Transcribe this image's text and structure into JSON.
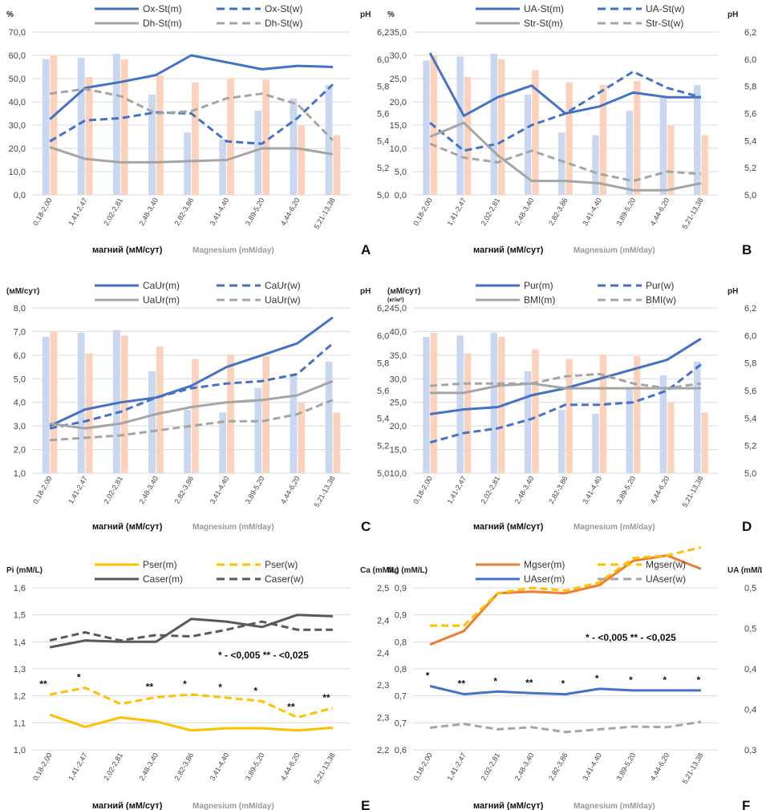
{
  "categories": [
    "0,18-2,00",
    "1,41-2,47",
    "2,02-2,81",
    "2,48-3,40",
    "2,82-3,86",
    "3,41-4,40",
    "3,89-5,20",
    "4,44-6,20",
    "5,21-13,38"
  ],
  "colors": {
    "blue": "#4472c4",
    "gray": "#a5a5a5",
    "darkgray": "#595959",
    "orange": "#ed7d31",
    "yellow": "#ffc000",
    "bar_blue": "#c9d7f0",
    "bar_orange": "#fbd3bd"
  },
  "chart_data": [
    {
      "id": "A",
      "panel_label": "A",
      "type": "line",
      "left_unit": "%",
      "right_unit": "pH",
      "xlabel": "магний (мМ/сут)",
      "xlabel_en": "Magnesium (mM/day)",
      "ylim": [
        0,
        70
      ],
      "yticks": [
        "0,0",
        "10,0",
        "20,0",
        "30,0",
        "40,0",
        "50,0",
        "60,0",
        "70,0"
      ],
      "y2lim": [
        5.0,
        6.2
      ],
      "y2ticks": [
        "5,0",
        "5,2",
        "5,4",
        "5,6",
        "5,8",
        "6,0",
        "6,2"
      ],
      "bars": {
        "men": [
          6.0,
          6.01,
          6.04,
          5.74,
          5.46,
          5.41,
          5.62,
          5.71,
          5.81
        ],
        "women": [
          6.03,
          5.87,
          6.0,
          5.88,
          5.83,
          5.86,
          5.85,
          5.51,
          5.44
        ]
      },
      "series": [
        {
          "name": "Ox-St(m)",
          "color": "blue",
          "dash": false,
          "values": [
            32.5,
            46.0,
            48.5,
            51.5,
            60.0,
            57.0,
            54.0,
            55.5,
            55.0
          ]
        },
        {
          "name": "Ox-St(w)",
          "color": "blue",
          "dash": true,
          "values": [
            23.0,
            32.0,
            33.0,
            35.5,
            35.0,
            23.0,
            22.0,
            33.0,
            47.5
          ]
        },
        {
          "name": "Dh-St(m)",
          "color": "gray",
          "dash": false,
          "values": [
            20.5,
            15.5,
            14.0,
            14.0,
            14.5,
            15.0,
            20.0,
            20.0,
            17.5
          ]
        },
        {
          "name": "Dh-St(w)",
          "color": "gray",
          "dash": true,
          "values": [
            43.5,
            45.5,
            42.5,
            35.0,
            36.0,
            41.5,
            43.5,
            39.0,
            23.5
          ]
        }
      ]
    },
    {
      "id": "B",
      "panel_label": "B",
      "type": "line",
      "left_unit": "%",
      "right_unit": "pH",
      "xlabel": "магний (мМ/сут)",
      "xlabel_en": "Magnesium (mM/day)",
      "ylim": [
        0,
        35
      ],
      "yticks": [
        "0,0",
        "5,0",
        "10,0",
        "15,0",
        "20,0",
        "25,0",
        "30,0",
        "35,0"
      ],
      "y2lim": [
        5.0,
        6.2
      ],
      "y2ticks": [
        "5,0",
        "5,2",
        "5,4",
        "5,6",
        "5,8",
        "6,0",
        "6,2"
      ],
      "bars": {
        "men": [
          5.99,
          6.02,
          6.04,
          5.74,
          5.46,
          5.44,
          5.62,
          5.72,
          5.81
        ],
        "women": [
          6.03,
          5.87,
          6.0,
          5.92,
          5.83,
          5.81,
          5.84,
          5.51,
          5.44
        ]
      },
      "series": [
        {
          "name": "UA-St(m)",
          "color": "blue",
          "dash": false,
          "values": [
            30.5,
            17.0,
            21.0,
            23.5,
            17.5,
            19.0,
            22.0,
            21.0,
            21.0
          ]
        },
        {
          "name": "UA-St(w)",
          "color": "blue",
          "dash": true,
          "values": [
            15.5,
            9.5,
            11.0,
            15.0,
            17.5,
            22.0,
            26.5,
            23.0,
            21.0
          ]
        },
        {
          "name": "Str-St(m)",
          "color": "gray",
          "dash": false,
          "values": [
            12.5,
            15.5,
            8.5,
            3.0,
            3.0,
            2.5,
            1.0,
            1.0,
            2.5
          ]
        },
        {
          "name": "Str-St(w)",
          "color": "gray",
          "dash": true,
          "values": [
            11.0,
            8.0,
            7.0,
            9.5,
            7.0,
            4.5,
            3.0,
            5.0,
            4.5
          ]
        }
      ]
    },
    {
      "id": "C",
      "panel_label": "C",
      "type": "line",
      "left_unit": "(мМ/сут)",
      "right_unit": "pH",
      "xlabel": "магний (мМ/сут)",
      "xlabel_en": "Magnesium (mM/day)",
      "ylim": [
        1,
        8
      ],
      "yticks": [
        "1,0",
        "2,0",
        "3,0",
        "4,0",
        "5,0",
        "6,0",
        "7,0",
        "8,0"
      ],
      "y2lim": [
        5.0,
        6.2
      ],
      "y2ticks": [
        "5,0",
        "5,2",
        "5,4",
        "5,6",
        "5,8",
        "6,0",
        "6,2"
      ],
      "bars": {
        "men": [
          5.99,
          6.02,
          6.04,
          5.74,
          5.46,
          5.44,
          5.62,
          5.72,
          5.81
        ],
        "women": [
          6.03,
          5.87,
          6.0,
          5.92,
          5.83,
          5.86,
          5.85,
          5.51,
          5.44
        ]
      },
      "series": [
        {
          "name": "CaUr(m)",
          "color": "blue",
          "dash": false,
          "values": [
            3.0,
            3.7,
            4.0,
            4.2,
            4.7,
            5.5,
            6.0,
            6.5,
            7.6
          ]
        },
        {
          "name": "CaUr(w)",
          "color": "blue",
          "dash": true,
          "values": [
            2.9,
            3.2,
            3.6,
            4.2,
            4.6,
            4.8,
            4.9,
            5.2,
            6.5
          ]
        },
        {
          "name": "UaUr(m)",
          "color": "gray",
          "dash": false,
          "values": [
            3.1,
            2.9,
            3.1,
            3.5,
            3.8,
            4.0,
            4.1,
            4.3,
            4.9
          ]
        },
        {
          "name": "UaUr(w)",
          "color": "gray",
          "dash": true,
          "values": [
            2.4,
            2.5,
            2.6,
            2.8,
            3.0,
            3.2,
            3.2,
            3.5,
            4.1
          ]
        }
      ]
    },
    {
      "id": "D",
      "panel_label": "D",
      "type": "line",
      "left_unit": "(мМ/сут)",
      "left_unit2": "(кг/м²)",
      "right_unit": "pH",
      "xlabel": "магний (мМ/сут)",
      "xlabel_en": "Magnesium (mM/day)",
      "ylim": [
        10,
        45
      ],
      "yticks": [
        "10,0",
        "15,0",
        "20,0",
        "25,0",
        "30,0",
        "35,0",
        "40,0",
        "45,0"
      ],
      "y2lim": [
        5.0,
        6.2
      ],
      "y2ticks": [
        "5,0",
        "5,2",
        "5,4",
        "5,6",
        "5,8",
        "6,0",
        "6,2"
      ],
      "bars": {
        "men": [
          5.99,
          6.0,
          6.02,
          5.74,
          5.46,
          5.43,
          5.61,
          5.71,
          5.81
        ],
        "women": [
          6.02,
          5.87,
          5.99,
          5.9,
          5.83,
          5.86,
          5.85,
          5.51,
          5.44
        ]
      },
      "series": [
        {
          "name": "Pur(m)",
          "color": "blue",
          "dash": false,
          "values": [
            22.5,
            23.5,
            24.0,
            26.5,
            28.0,
            30.0,
            32.0,
            34.0,
            38.5
          ]
        },
        {
          "name": "Pur(w)",
          "color": "blue",
          "dash": true,
          "values": [
            16.5,
            18.5,
            19.5,
            21.5,
            24.5,
            24.5,
            25.0,
            27.5,
            33.0
          ]
        },
        {
          "name": "BMI(m)",
          "color": "gray",
          "dash": false,
          "values": [
            27.0,
            27.0,
            28.5,
            29.0,
            28.0,
            28.0,
            28.0,
            28.0,
            28.0
          ]
        },
        {
          "name": "BMI(w)",
          "color": "gray",
          "dash": true,
          "values": [
            28.5,
            29.0,
            29.0,
            29.0,
            30.5,
            31.0,
            29.0,
            28.0,
            29.0
          ]
        }
      ]
    },
    {
      "id": "E",
      "panel_label": "E",
      "type": "line",
      "bars": null,
      "left_unit": "Pi (mM/L)",
      "right_unit": "Ca (mM/L)",
      "xlabel": "магний (мМ/сут)",
      "xlabel_en": "Magnesium (mM/day)",
      "ylim": [
        1.0,
        1.6
      ],
      "yticks": [
        "1,0",
        "1,1",
        "1,2",
        "1,3",
        "1,4",
        "1,5",
        "1,6"
      ],
      "y2lim": [
        2.2,
        2.5
      ],
      "y2ticks": [
        "2,2",
        "2,3",
        "2,3",
        "2,4",
        "2,4",
        "2,5"
      ],
      "series": [
        {
          "name": "Pser(m)",
          "color": "yellow",
          "dash": false,
          "values": [
            1.13,
            1.085,
            1.12,
            1.105,
            1.072,
            1.08,
            1.08,
            1.072,
            1.082
          ]
        },
        {
          "name": "Pser(w)",
          "color": "yellow",
          "dash": true,
          "values": [
            1.205,
            1.23,
            1.17,
            1.195,
            1.205,
            1.193,
            1.18,
            1.12,
            1.155
          ]
        },
        {
          "name": "Caser(m)",
          "color": "darkgray",
          "dash": false,
          "values": [
            1.38,
            1.405,
            1.4,
            1.4,
            1.485,
            1.475,
            1.455,
            1.5,
            1.495
          ]
        },
        {
          "name": "Caser(w)",
          "color": "darkgray",
          "dash": true,
          "values": [
            1.405,
            1.435,
            1.405,
            1.425,
            1.42,
            1.445,
            1.475,
            1.445,
            1.445
          ]
        }
      ],
      "significance": [
        "**",
        "*",
        "",
        "**",
        "*",
        "*",
        "*",
        "**",
        "**"
      ],
      "note": "* - <0,005    ** - <0,025"
    },
    {
      "id": "F",
      "panel_label": "F",
      "type": "line",
      "bars": null,
      "left_unit": "Mg (mM/L)",
      "right_unit": "UA (mM/L)",
      "xlabel": "магний (мМ/сут)",
      "xlabel_en": "Magnesium (mM/day)",
      "ylim": [
        0.6,
        0.9
      ],
      "yticks": [
        "0,6",
        "0,7",
        "0,7",
        "0,8",
        "0,8",
        "0,9",
        "0,9"
      ],
      "y2lim": [
        0.3,
        0.5
      ],
      "y2ticks": [
        "0,3",
        "0,4",
        "0,4",
        "0,5",
        "0,5"
      ],
      "series": [
        {
          "name": "Mgser(m)",
          "color": "orange",
          "dash": false,
          "values": [
            0.795,
            0.82,
            0.89,
            0.893,
            0.89,
            0.905,
            0.95,
            0.96,
            0.935
          ]
        },
        {
          "name": "Mgser(w)",
          "color": "yellow",
          "dash": true,
          "values": [
            0.83,
            0.83,
            0.89,
            0.9,
            0.895,
            0.91,
            0.955,
            0.96,
            0.975
          ]
        },
        {
          "name": "UAser(m)",
          "color": "blue",
          "dash": false,
          "values": [
            0.718,
            0.703,
            0.708,
            0.705,
            0.703,
            0.713,
            0.71,
            0.71,
            0.71
          ]
        },
        {
          "name": "UAser(w)",
          "color": "gray",
          "dash": true,
          "values": [
            0.641,
            0.648,
            0.638,
            0.642,
            0.633,
            0.638,
            0.643,
            0.642,
            0.652
          ]
        }
      ],
      "significance": [
        "*",
        "**",
        "*",
        "**",
        "*",
        "*",
        "*",
        "*",
        "*"
      ],
      "note": "* - <0,005    ** - <0,025"
    }
  ]
}
